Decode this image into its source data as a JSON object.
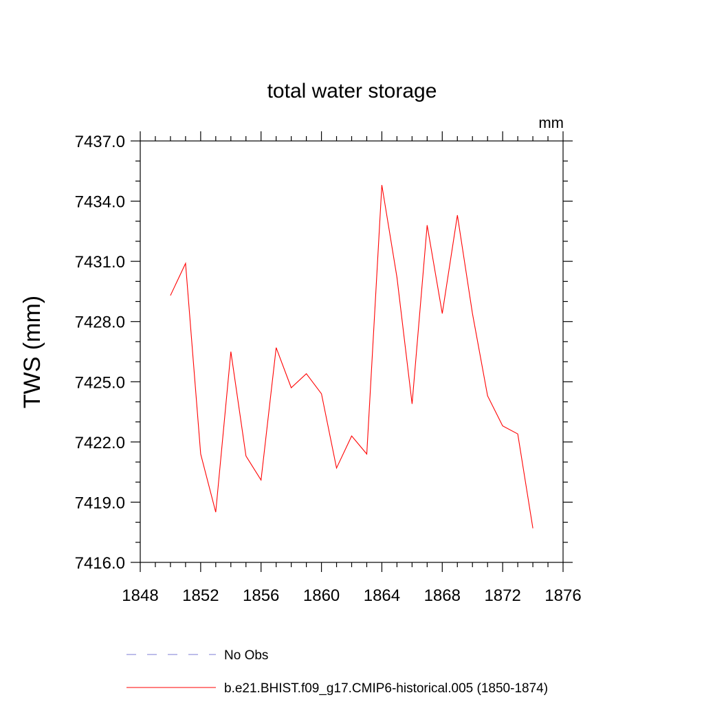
{
  "chart_data": {
    "type": "line",
    "title": "total water storage",
    "units_label": "mm",
    "xlabel": "",
    "ylabel": "TWS  (mm)",
    "xlim": [
      1848,
      1876
    ],
    "ylim": [
      7416.0,
      7437.0
    ],
    "x_ticks": [
      "1848",
      "1852",
      "1856",
      "1860",
      "1864",
      "1868",
      "1872",
      "1876"
    ],
    "y_ticks": [
      "7416.0",
      "7419.0",
      "7422.0",
      "7425.0",
      "7428.0",
      "7431.0",
      "7434.0",
      "7437.0"
    ],
    "grid": false,
    "legend_position": "bottom",
    "series": [
      {
        "name": "b.e21.BHIST.f09_g17.CMIP6-historical.005 (1850-1874)",
        "color": "#ff0000",
        "style": "solid",
        "x": [
          1850,
          1851,
          1852,
          1853,
          1854,
          1855,
          1856,
          1857,
          1858,
          1859,
          1860,
          1861,
          1862,
          1863,
          1864,
          1865,
          1866,
          1867,
          1868,
          1869,
          1870,
          1871,
          1872,
          1873,
          1874
        ],
        "y": [
          7429.3,
          7430.9,
          7421.4,
          7418.5,
          7426.5,
          7421.3,
          7420.1,
          7426.7,
          7424.7,
          7425.4,
          7424.4,
          7420.7,
          7422.3,
          7421.4,
          7434.8,
          7430.2,
          7423.9,
          7432.8,
          7428.4,
          7433.3,
          7428.4,
          7424.3,
          7422.8,
          7422.4,
          7417.7
        ]
      }
    ],
    "legend": [
      {
        "name": "No Obs",
        "color": "#7b7bd6",
        "style": "dashed"
      },
      {
        "name": "b.e21.BHIST.f09_g17.CMIP6-historical.005 (1850-1874)",
        "color": "#ff0000",
        "style": "solid"
      }
    ]
  }
}
